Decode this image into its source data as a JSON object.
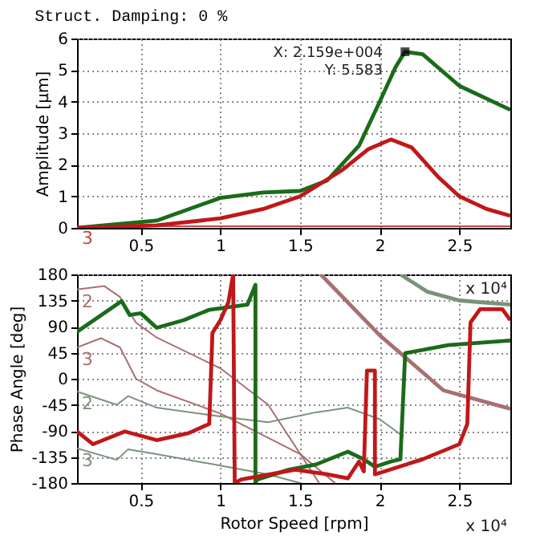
{
  "chart_data": [
    {
      "type": "line",
      "title": "Struct. Damping: 0 %",
      "ylabel": "Amplitude [µm]",
      "xlim": [
        0.1,
        2.82
      ],
      "xticks": [
        0.5,
        1,
        1.5,
        2,
        2.5
      ],
      "ylim": [
        0,
        6
      ],
      "yticks": [
        0,
        1,
        2,
        3,
        4,
        5,
        6
      ],
      "grid": true,
      "line_style": "solid",
      "annotations": [
        {
          "text": "X: 2.159e+004\nY: 5.583",
          "x": 2.159,
          "y": 5.58
        }
      ],
      "series": [
        {
          "name": "3",
          "color": "#c04848",
          "x": [
            0.1,
            0.5,
            1.0,
            1.5,
            2.0,
            2.5,
            2.82
          ],
          "values": [
            0.05,
            0.05,
            0.05,
            0.05,
            0.05,
            0.05,
            0.05
          ]
        },
        {
          "color": "#1a6b1a",
          "x": [
            0.1,
            0.6,
            1.0,
            1.27,
            1.5,
            1.67,
            1.87,
            2.0,
            2.1,
            2.159,
            2.27,
            2.5,
            2.82
          ],
          "values": [
            0,
            0.23,
            0.95,
            1.12,
            1.17,
            1.5,
            2.6,
            4.0,
            5.1,
            5.58,
            5.5,
            4.5,
            3.74
          ]
        },
        {
          "color": "#c0181a",
          "x": [
            0.1,
            0.6,
            1.0,
            1.27,
            1.5,
            1.77,
            1.93,
            2.07,
            2.2,
            2.37,
            2.5,
            2.67,
            2.82
          ],
          "values": [
            0,
            0.08,
            0.3,
            0.6,
            1.0,
            1.85,
            2.5,
            2.8,
            2.55,
            1.6,
            1.0,
            0.6,
            0.38
          ]
        }
      ]
    },
    {
      "type": "line",
      "xlabel": "Rotor Speed [rpm]",
      "ylabel": "Phase Angle [deg]",
      "xlim": [
        0.1,
        2.82
      ],
      "xticks": [
        0.5,
        1,
        1.5,
        2,
        2.5
      ],
      "ylim": [
        -180,
        180
      ],
      "yticks": [
        -180,
        -135,
        -90,
        -45,
        0,
        45,
        90,
        135,
        180
      ],
      "grid": true,
      "line_style": "solid",
      "annotations": [
        "x 10⁴",
        "x 10⁴"
      ],
      "series": [
        {
          "name": "2",
          "color": "#a87070",
          "x": [
            0.1,
            0.27,
            0.37,
            0.47,
            0.6,
            1.0,
            1.3,
            1.62
          ],
          "values": [
            154,
            160,
            141,
            97,
            71,
            18,
            -45,
            -180
          ]
        },
        {
          "name": "3",
          "color": "#a87070",
          "x": [
            0.1,
            0.25,
            0.37,
            0.47,
            0.6,
            1.0,
            1.5,
            1.72
          ],
          "values": [
            54,
            70,
            54,
            0,
            -20,
            -60,
            -130,
            -180
          ]
        },
        {
          "color": "#a87070",
          "x": [
            1.63,
            2.0,
            2.4,
            2.82
          ],
          "values": [
            180,
            75,
            -20,
            -52
          ]
        },
        {
          "color": "#7a927a",
          "x": [
            2.13,
            2.3,
            2.5,
            2.82
          ],
          "values": [
            180,
            150,
            135,
            128
          ]
        },
        {
          "name": "2",
          "color": "#7a927a",
          "x": [
            0.1,
            0.35,
            0.42,
            0.6,
            1.0,
            1.3,
            1.6,
            1.8,
            2.0,
            2.15
          ],
          "values": [
            -22,
            -45,
            -30,
            -50,
            -65,
            -75,
            -58,
            -50,
            -70,
            -100
          ]
        },
        {
          "name": "3",
          "color": "#7a927a",
          "x": [
            0.1,
            0.35,
            0.42,
            0.6,
            1.0,
            1.3,
            1.5
          ],
          "values": [
            -120,
            -140,
            -122,
            -130,
            -150,
            -165,
            -180
          ]
        },
        {
          "color": "#1a6b1a",
          "x": [
            0.1,
            0.38,
            0.43,
            0.5,
            0.6,
            0.77,
            0.93,
            1.17,
            1.22,
            1.22,
            1.23,
            1.43,
            1.6,
            1.8,
            1.9,
            1.97,
            2.07,
            2.13,
            2.16,
            2.43,
            2.82
          ],
          "values": [
            81,
            134,
            110,
            113,
            88,
            101,
            119,
            128,
            162,
            -180,
            -174,
            -157,
            -148,
            -126,
            -139,
            -152,
            -143,
            -139,
            44,
            58,
            66
          ]
        },
        {
          "color": "#c0181a",
          "x": [
            0.1,
            0.2,
            0.4,
            0.6,
            0.8,
            0.93,
            0.95,
            1.0,
            1.05,
            1.08,
            1.09,
            1.13,
            1.47,
            1.67,
            1.8,
            1.87,
            1.9,
            1.92,
            1.97,
            1.97,
            2.27,
            2.5,
            2.55,
            2.57,
            2.63,
            2.77,
            2.82
          ],
          "values": [
            -91,
            -113,
            -91,
            -106,
            -94,
            -78,
            79,
            101,
            132,
            180,
            -180,
            -174,
            -157,
            -165,
            -172,
            -143,
            -160,
            14,
            14,
            -165,
            -139,
            -113,
            -78,
            97,
            120,
            120,
            101
          ]
        }
      ]
    }
  ]
}
